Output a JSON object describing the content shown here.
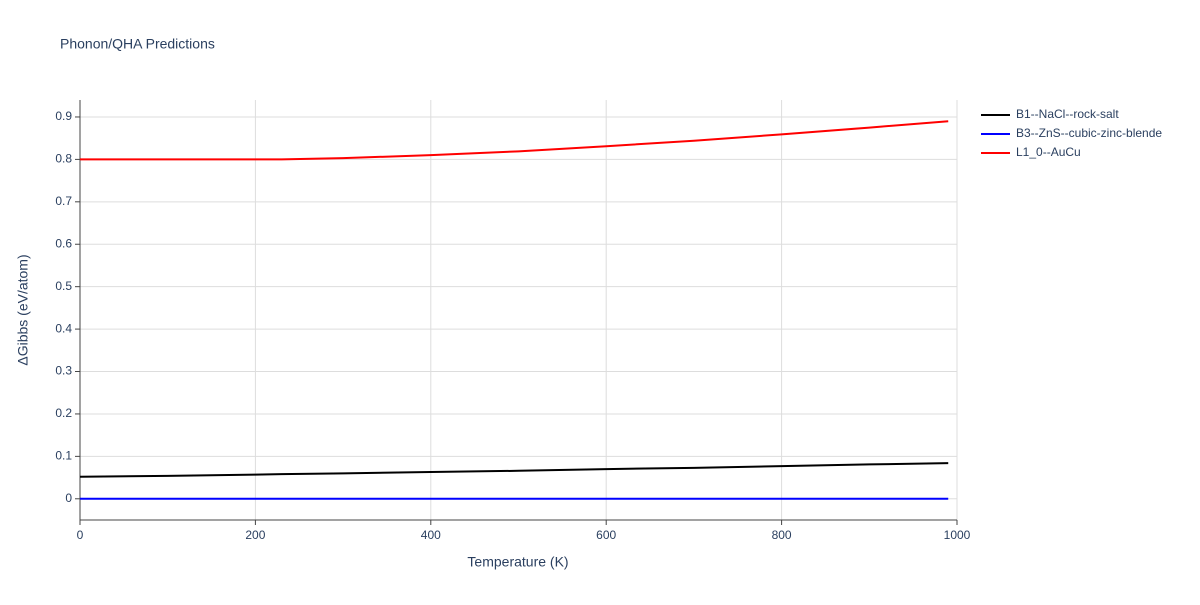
{
  "chart_data": {
    "type": "line",
    "title": "Phonon/QHA Predictions",
    "x_label": "Temperature (K)",
    "y_label": "ΔGibbs (eV/atom)",
    "x": [
      0,
      100,
      200,
      230,
      300,
      400,
      500,
      600,
      700,
      800,
      900,
      990
    ],
    "series": [
      {
        "name": "B1--NaCl--rock-salt",
        "color": "#000000",
        "values": [
          0.052,
          0.054,
          0.057,
          0.058,
          0.06,
          0.063,
          0.066,
          0.07,
          0.073,
          0.077,
          0.081,
          0.084
        ]
      },
      {
        "name": "B3--ZnS--cubic-zinc-blende",
        "color": "#0000ff",
        "values": [
          0,
          0,
          0,
          0,
          0,
          0,
          0,
          0,
          0,
          0,
          0,
          0
        ]
      },
      {
        "name": "L1_0--AuCu",
        "color": "#ff0000",
        "values": [
          0.8,
          0.8,
          0.8,
          0.8,
          0.803,
          0.81,
          0.819,
          0.831,
          0.844,
          0.859,
          0.875,
          0.89
        ]
      }
    ],
    "xlim": [
      0,
      1000
    ],
    "xticks": [
      0,
      200,
      400,
      600,
      800,
      1000
    ],
    "ylim": [
      -0.05,
      0.94
    ],
    "yticks": [
      0,
      0.1,
      0.2,
      0.3,
      0.4,
      0.5,
      0.6,
      0.7,
      0.8,
      0.9
    ],
    "grid": true,
    "legend": "right"
  }
}
